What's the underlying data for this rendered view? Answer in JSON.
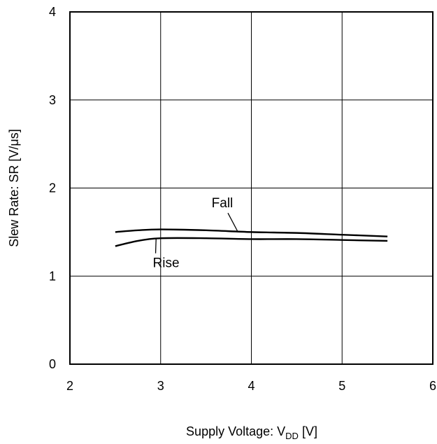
{
  "chart_data": {
    "type": "line",
    "title": "",
    "xlabel": {
      "main": "Supply Voltage: V",
      "sub": "DD",
      "unit": " [V]"
    },
    "ylabel": "Slew Rate: SR [V/μs]",
    "xlim": [
      2,
      6
    ],
    "ylim": [
      0,
      4
    ],
    "x_ticks": [
      2,
      3,
      4,
      5,
      6
    ],
    "y_ticks": [
      0,
      1,
      2,
      3,
      4
    ],
    "x_tick_labels": [
      "2",
      "3",
      "4",
      "5",
      "6"
    ],
    "y_tick_labels": [
      "0",
      "1",
      "2",
      "3",
      "4"
    ],
    "grid": true,
    "legend": "none",
    "series": [
      {
        "name": "Fall",
        "x": [
          2.5,
          2.75,
          3.0,
          3.5,
          4.0,
          4.5,
          5.0,
          5.5
        ],
        "y": [
          1.5,
          1.52,
          1.53,
          1.52,
          1.5,
          1.49,
          1.47,
          1.45
        ]
      },
      {
        "name": "Rise",
        "x": [
          2.5,
          2.75,
          3.0,
          3.5,
          4.0,
          4.5,
          5.0,
          5.5
        ],
        "y": [
          1.34,
          1.4,
          1.43,
          1.43,
          1.42,
          1.42,
          1.41,
          1.4
        ]
      }
    ],
    "annotations": [
      {
        "text": "Fall",
        "series": 0,
        "label_x": 3.68,
        "label_y": 1.78,
        "point_x": 3.85,
        "point_y": 1.505
      },
      {
        "text": "Rise",
        "series": 1,
        "label_x": 3.06,
        "label_y": 1.1,
        "point_x": 2.95,
        "point_y": 1.43
      }
    ]
  }
}
